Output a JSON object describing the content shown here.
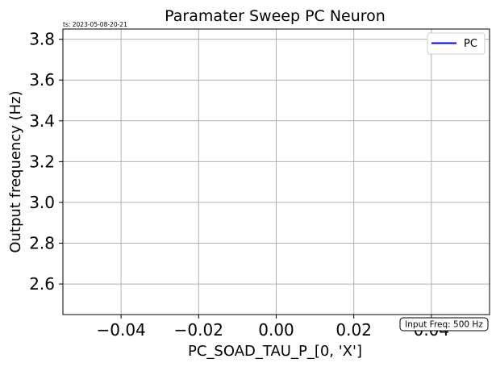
{
  "chart_data": {
    "type": "line",
    "title": "Paramater Sweep PC Neuron",
    "timestamp_label": "ts: 2023-05-08-20-21",
    "xlabel": "PC_SOAD_TAU_P_[0, 'X']",
    "ylabel": "Output frequency (Hz)",
    "xlim": [
      -0.055,
      0.055
    ],
    "ylim": [
      2.45,
      3.85
    ],
    "xticks": [
      -0.04,
      -0.02,
      0.0,
      0.02,
      0.04
    ],
    "xtick_labels": [
      "−0.04",
      "−0.02",
      "0.00",
      "0.02",
      "0.04"
    ],
    "yticks": [
      2.6,
      2.8,
      3.0,
      3.2,
      3.4,
      3.6,
      3.8
    ],
    "ytick_labels": [
      "2.6",
      "2.8",
      "3.0",
      "3.2",
      "3.4",
      "3.6",
      "3.8"
    ],
    "grid": true,
    "legend_position": "top-right",
    "series": [
      {
        "name": "PC",
        "color": "#0000ff",
        "x": [],
        "y": []
      }
    ],
    "annotation": "Input Freq: 500 Hz"
  }
}
